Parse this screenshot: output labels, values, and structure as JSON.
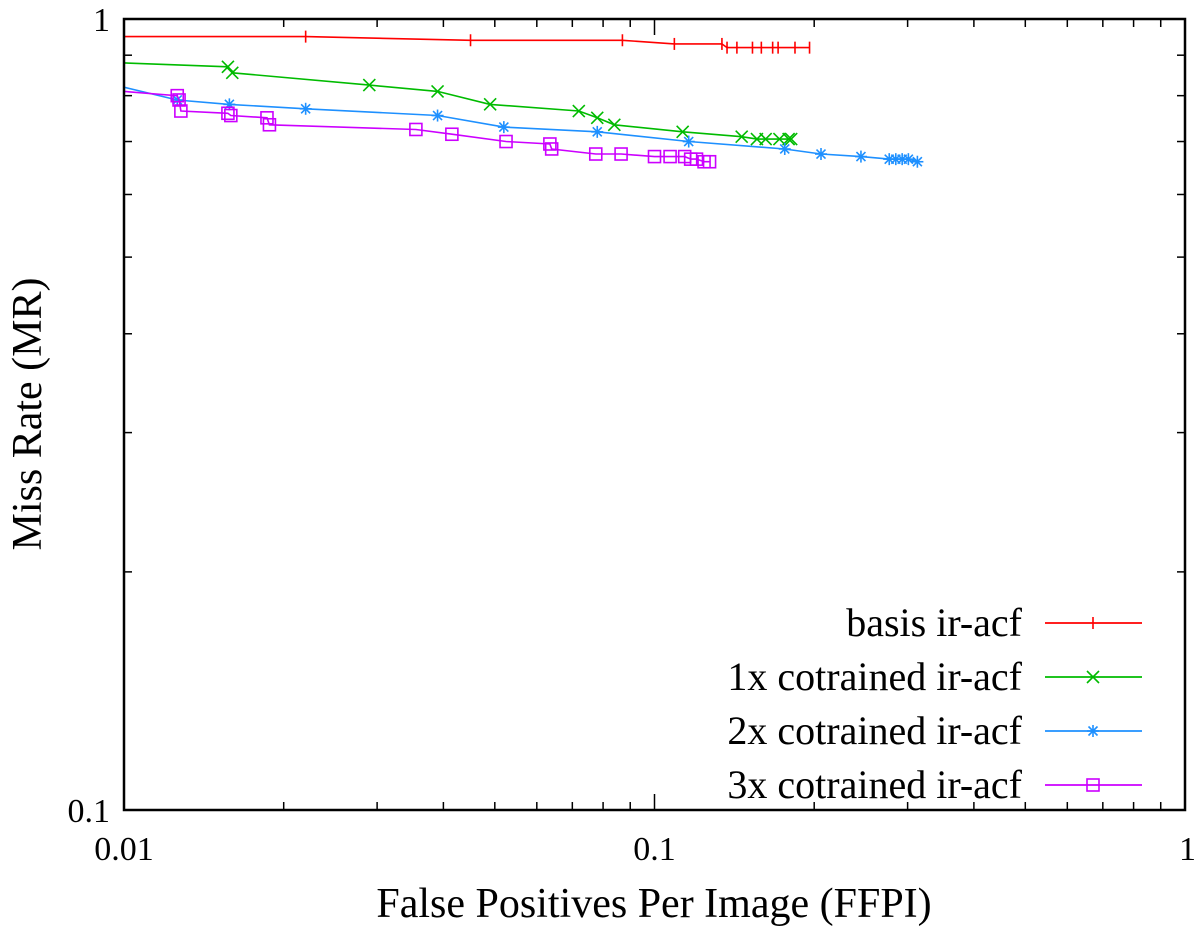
{
  "chart_data": {
    "type": "line",
    "title": "",
    "xlabel": "False Positives Per Image (FFPI)",
    "ylabel": "Miss Rate (MR)",
    "xscale": "log",
    "yscale": "log",
    "xlim": [
      0.01,
      1
    ],
    "ylim": [
      0.1,
      1
    ],
    "x_tick_labels": [
      "0.01",
      "0.1",
      "1"
    ],
    "y_tick_labels": [
      "0.1",
      "1"
    ],
    "grid": false,
    "legend_position": "bottom-right",
    "series": [
      {
        "name": "basis ir-acf",
        "color": "#ff0000",
        "marker": "plus",
        "x": [
          0.01,
          0.022,
          0.045,
          0.087,
          0.109,
          0.134,
          0.137,
          0.143,
          0.153,
          0.159,
          0.167,
          0.171,
          0.184,
          0.196
        ],
        "y": [
          0.95,
          0.95,
          0.94,
          0.94,
          0.93,
          0.93,
          0.92,
          0.92,
          0.92,
          0.92,
          0.92,
          0.92,
          0.92,
          0.92
        ]
      },
      {
        "name": "1x cotrained ir-acf",
        "color": "#00bb00",
        "marker": "x",
        "x": [
          0.01,
          0.0157,
          0.016,
          0.029,
          0.039,
          0.049,
          0.072,
          0.078,
          0.084,
          0.113,
          0.146,
          0.156,
          0.162,
          0.172,
          0.179,
          0.181
        ],
        "y": [
          0.88,
          0.87,
          0.855,
          0.825,
          0.81,
          0.78,
          0.765,
          0.75,
          0.735,
          0.72,
          0.71,
          0.705,
          0.705,
          0.705,
          0.705,
          0.705
        ]
      },
      {
        "name": "2x cotrained ir-acf",
        "color": "#1e90ff",
        "marker": "star",
        "x": [
          0.01,
          0.0126,
          0.0158,
          0.022,
          0.039,
          0.052,
          0.078,
          0.116,
          0.176,
          0.206,
          0.245,
          0.277,
          0.285,
          0.293,
          0.301,
          0.313
        ],
        "y": [
          0.82,
          0.79,
          0.78,
          0.77,
          0.755,
          0.73,
          0.72,
          0.7,
          0.685,
          0.675,
          0.67,
          0.665,
          0.665,
          0.665,
          0.665,
          0.66
        ]
      },
      {
        "name": "3x cotrained ir-acf",
        "color": "#cc00ff",
        "marker": "square",
        "x": [
          0.01,
          0.0126,
          0.0127,
          0.0128,
          0.0157,
          0.0159,
          0.0186,
          0.0188,
          0.0355,
          0.0415,
          0.0525,
          0.0635,
          0.064,
          0.0775,
          0.0865,
          0.1,
          0.107,
          0.114,
          0.117,
          0.12,
          0.124,
          0.127
        ],
        "y": [
          0.81,
          0.8,
          0.79,
          0.765,
          0.76,
          0.755,
          0.75,
          0.735,
          0.725,
          0.715,
          0.7,
          0.695,
          0.685,
          0.675,
          0.675,
          0.67,
          0.67,
          0.67,
          0.665,
          0.665,
          0.66,
          0.66
        ]
      }
    ]
  }
}
